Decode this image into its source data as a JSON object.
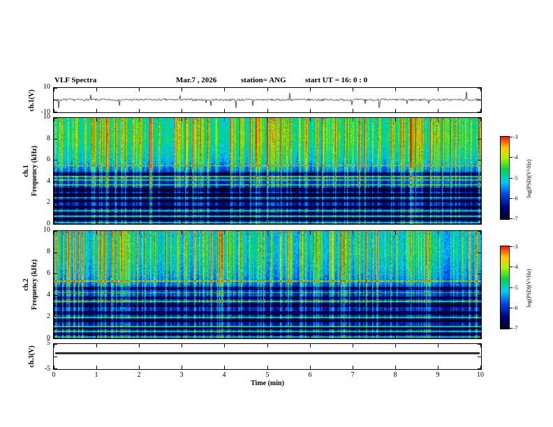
{
  "header": {
    "title": "VLF Spectra",
    "date_label": "Mar.7 , 2026",
    "station_label": "station= ANG",
    "start_ut_label": "start UT  =   16: 0  : 0"
  },
  "panels": {
    "ch1_wave": {
      "axis_label": "ch.1(V)",
      "ytick_top": "10",
      "ytick_bottom": "-10"
    },
    "ch1_spec": {
      "channel_label": "ch.1",
      "axis_label": "Frequency (kHz)",
      "yticks": [
        "10",
        "8",
        "6",
        "4",
        "2",
        "0"
      ]
    },
    "ch2_spec": {
      "channel_label": "ch.2",
      "axis_label": "Frequency (kHz)",
      "yticks": [
        "10",
        "8",
        "6",
        "4",
        "2",
        "0"
      ]
    },
    "ch3_wave": {
      "axis_label": "ch.3(V)",
      "ytick_top": "5",
      "ytick_bottom": "-5"
    }
  },
  "xaxis": {
    "label": "Time (min)",
    "ticks": [
      "0",
      "1",
      "2",
      "3",
      "4",
      "5",
      "6",
      "7",
      "8",
      "9",
      "10"
    ]
  },
  "colorbars": [
    {
      "label": "log(PSD)(V²/Hz)",
      "ticks": [
        "-3",
        "-4",
        "-5",
        "-6",
        "-7"
      ]
    },
    {
      "label": "log(PSD)(V²/Hz)",
      "ticks": [
        "-3",
        "-4",
        "-5",
        "-6",
        "-7"
      ]
    }
  ],
  "chart_data": [
    {
      "type": "line",
      "title": "ch.1 voltage waveform",
      "xlabel": "Time (min)",
      "ylabel": "ch.1(V)",
      "xlim": [
        0,
        10
      ],
      "ylim": [
        -10,
        10
      ],
      "noise_amp": 0.9,
      "spike_count": 16,
      "spike_amp": 7,
      "description": "continuous broadband noise trace around 0 V with occasional impulsive spikes up to about ±7 V"
    },
    {
      "type": "heatmap",
      "title": "ch.1 VLF spectrogram",
      "xlabel": "Time (min)",
      "ylabel": "Frequency (kHz)",
      "xlim": [
        0,
        10
      ],
      "ylim": [
        0,
        10
      ],
      "zlabel": "log(PSD)(V²/Hz)",
      "zlim": [
        -7,
        -3
      ],
      "colormap": "jet",
      "legend_position": "right",
      "base_profile": [
        [
          0,
          -6.6
        ],
        [
          2,
          -6.5
        ],
        [
          4,
          -6.35
        ],
        [
          5,
          -6.0
        ],
        [
          6,
          -5.4
        ],
        [
          8,
          -5.0
        ],
        [
          10,
          -5.1
        ]
      ],
      "dark_bands": [
        [
          4.55,
          4.9
        ],
        [
          3.0,
          3.4
        ],
        [
          2.55,
          2.85
        ],
        [
          2.0,
          2.3
        ],
        [
          1.4,
          1.7
        ],
        [
          0.8,
          1.0
        ],
        [
          0.3,
          0.55
        ]
      ],
      "bright_lines": [
        5.5,
        4.45,
        4.15,
        3.7,
        2.45,
        1.2,
        0.7,
        0.12
      ],
      "description": "dense vertical sferic streaks over full band; bright green-yellow background above ~5 kHz with sporadic red tips near 10 kHz; dark blue background with black horizontal bands and thin cyan lines below 5 kHz"
    },
    {
      "type": "heatmap",
      "title": "ch.2 VLF spectrogram",
      "xlabel": "Time (min)",
      "ylabel": "Frequency (kHz)",
      "xlim": [
        0,
        10
      ],
      "ylim": [
        0,
        10
      ],
      "zlabel": "log(PSD)(V²/Hz)",
      "zlim": [
        -7,
        -3
      ],
      "colormap": "jet",
      "legend_position": "right",
      "base_profile": [
        [
          0,
          -6.6
        ],
        [
          2,
          -6.5
        ],
        [
          4,
          -6.35
        ],
        [
          5,
          -6.1
        ],
        [
          6,
          -5.7
        ],
        [
          8,
          -5.4
        ],
        [
          10,
          -5.5
        ]
      ],
      "dark_bands": [
        [
          4.5,
          4.8
        ],
        [
          3.6,
          3.9
        ],
        [
          2.9,
          3.3
        ],
        [
          2.2,
          2.5
        ],
        [
          1.5,
          1.8
        ],
        [
          0.8,
          1.0
        ],
        [
          0.3,
          0.5
        ]
      ],
      "bright_lines": [
        5.3,
        4.25,
        3.45,
        1.95,
        1.1,
        0.6,
        0.12
      ],
      "description": "similar to ch.1 but slightly dimmer high-frequency background; vertical streaks dominate with blue-green coloring"
    },
    {
      "type": "line",
      "title": "ch.3 voltage",
      "xlabel": "Time (min)",
      "ylabel": "ch.3(V)",
      "xlim": [
        0,
        10
      ],
      "ylim": [
        -5,
        5
      ],
      "constant_value": 1.2,
      "description": "flat constant heavy line slightly above 0 V for the whole record"
    }
  ]
}
